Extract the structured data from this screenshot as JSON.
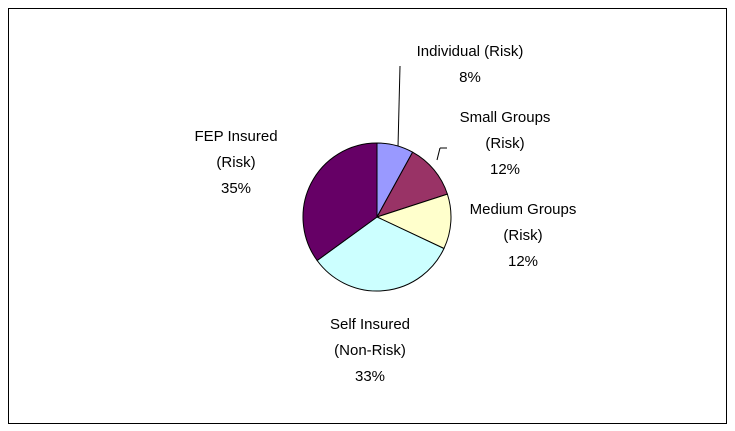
{
  "chart_data": {
    "type": "pie",
    "categories": [
      "Individual (Risk)",
      "Small Groups (Risk)",
      "Medium Groups (Risk)",
      "Self Insured (Non-Risk)",
      "FEP Insured (Risk)"
    ],
    "values": [
      8,
      12,
      12,
      33,
      35
    ],
    "value_labels": [
      "8%",
      "12%",
      "12%",
      "33%",
      "35%"
    ],
    "colors": [
      "#9999ff",
      "#993366",
      "#ffffcc",
      "#ccffff",
      "#660066"
    ]
  }
}
